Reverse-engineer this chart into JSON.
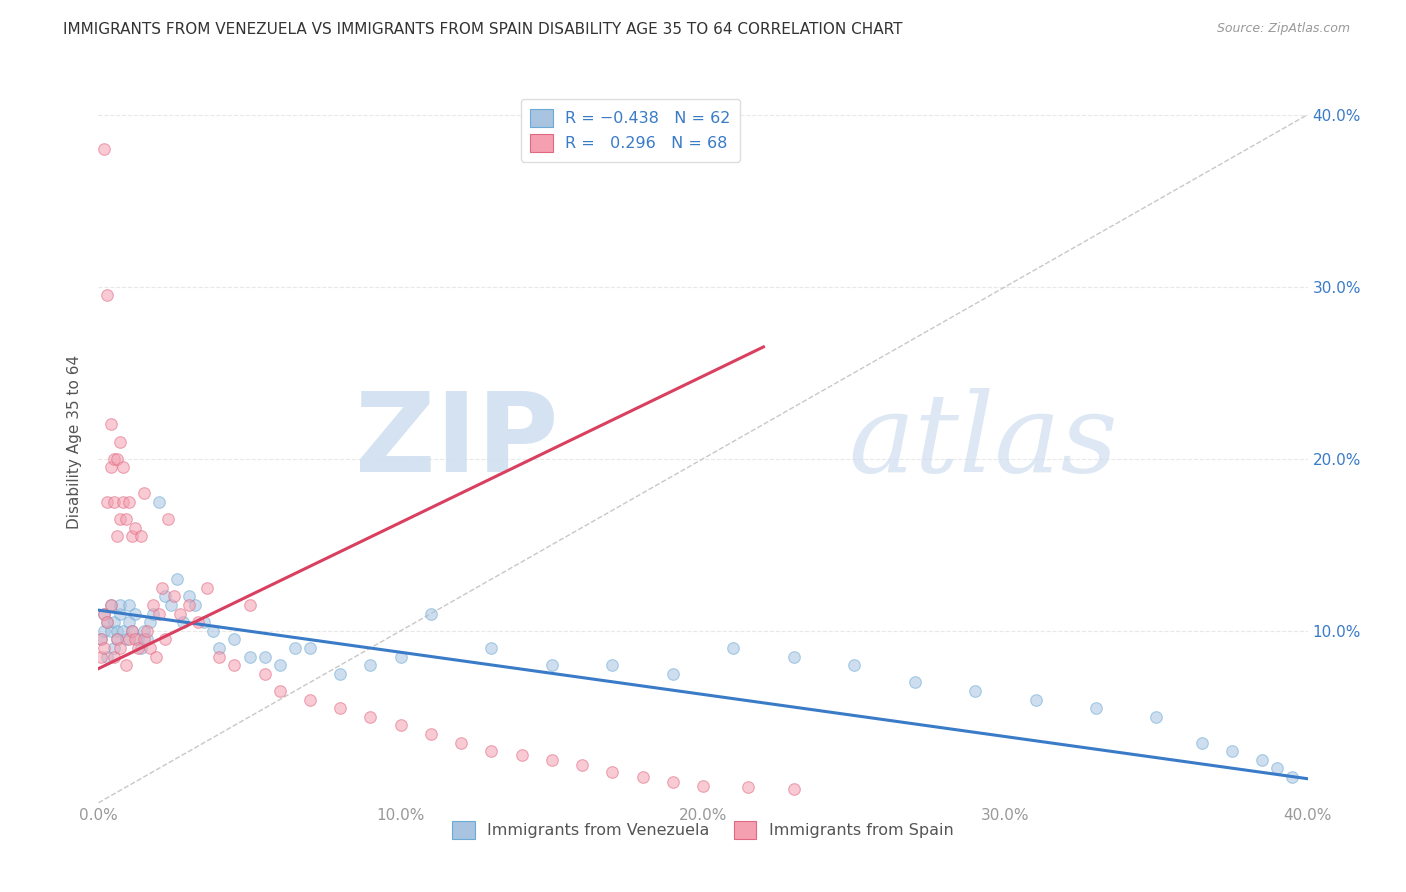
{
  "title": "IMMIGRANTS FROM VENEZUELA VS IMMIGRANTS FROM SPAIN DISABILITY AGE 35 TO 64 CORRELATION CHART",
  "source": "Source: ZipAtlas.com",
  "ylabel": "Disability Age 35 to 64",
  "xmin": 0.0,
  "xmax": 0.4,
  "ymin": 0.0,
  "ymax": 0.42,
  "x_tick_labels": [
    "0.0%",
    "10.0%",
    "20.0%",
    "30.0%",
    "40.0%"
  ],
  "x_tick_vals": [
    0.0,
    0.1,
    0.2,
    0.3,
    0.4
  ],
  "y_tick_labels": [
    "",
    "10.0%",
    "20.0%",
    "30.0%",
    "40.0%"
  ],
  "y_tick_vals": [
    0.0,
    0.1,
    0.2,
    0.3,
    0.4
  ],
  "blue_color": "#a8c4e0",
  "pink_color": "#f4a0b0",
  "blue_line_color": "#3a7bc8",
  "pink_line_color": "#d94060",
  "blue_edge_color": "#6aaad4",
  "pink_edge_color": "#e06880",
  "diag_line_color": "#c8c8c8",
  "watermark_color": "#d0dff0",
  "title_color": "#333333",
  "source_color": "#999999",
  "grid_color": "#e8e8e8",
  "background_color": "#ffffff",
  "blue_scatter_x": [
    0.001,
    0.002,
    0.002,
    0.003,
    0.003,
    0.004,
    0.004,
    0.005,
    0.005,
    0.006,
    0.006,
    0.007,
    0.007,
    0.008,
    0.009,
    0.01,
    0.01,
    0.011,
    0.012,
    0.013,
    0.014,
    0.015,
    0.016,
    0.017,
    0.018,
    0.02,
    0.022,
    0.024,
    0.026,
    0.028,
    0.03,
    0.032,
    0.035,
    0.038,
    0.04,
    0.045,
    0.05,
    0.055,
    0.06,
    0.065,
    0.07,
    0.08,
    0.09,
    0.1,
    0.11,
    0.13,
    0.15,
    0.17,
    0.19,
    0.21,
    0.23,
    0.25,
    0.27,
    0.29,
    0.31,
    0.33,
    0.35,
    0.365,
    0.375,
    0.385,
    0.39,
    0.395
  ],
  "blue_scatter_y": [
    0.095,
    0.1,
    0.11,
    0.085,
    0.105,
    0.1,
    0.115,
    0.09,
    0.105,
    0.1,
    0.095,
    0.11,
    0.115,
    0.1,
    0.095,
    0.105,
    0.115,
    0.1,
    0.11,
    0.095,
    0.09,
    0.1,
    0.095,
    0.105,
    0.11,
    0.175,
    0.12,
    0.115,
    0.13,
    0.105,
    0.12,
    0.115,
    0.105,
    0.1,
    0.09,
    0.095,
    0.085,
    0.085,
    0.08,
    0.09,
    0.09,
    0.075,
    0.08,
    0.085,
    0.11,
    0.09,
    0.08,
    0.08,
    0.075,
    0.09,
    0.085,
    0.08,
    0.07,
    0.065,
    0.06,
    0.055,
    0.05,
    0.035,
    0.03,
    0.025,
    0.02,
    0.015
  ],
  "pink_scatter_x": [
    0.001,
    0.001,
    0.002,
    0.002,
    0.002,
    0.003,
    0.003,
    0.003,
    0.004,
    0.004,
    0.004,
    0.005,
    0.005,
    0.005,
    0.006,
    0.006,
    0.006,
    0.007,
    0.007,
    0.007,
    0.008,
    0.008,
    0.009,
    0.009,
    0.01,
    0.01,
    0.011,
    0.011,
    0.012,
    0.012,
    0.013,
    0.014,
    0.015,
    0.015,
    0.016,
    0.017,
    0.018,
    0.019,
    0.02,
    0.021,
    0.022,
    0.023,
    0.025,
    0.027,
    0.03,
    0.033,
    0.036,
    0.04,
    0.045,
    0.05,
    0.055,
    0.06,
    0.07,
    0.08,
    0.09,
    0.1,
    0.11,
    0.12,
    0.13,
    0.14,
    0.15,
    0.16,
    0.17,
    0.18,
    0.19,
    0.2,
    0.215,
    0.23
  ],
  "pink_scatter_y": [
    0.085,
    0.095,
    0.09,
    0.11,
    0.38,
    0.105,
    0.175,
    0.295,
    0.115,
    0.195,
    0.22,
    0.085,
    0.175,
    0.2,
    0.095,
    0.155,
    0.2,
    0.09,
    0.165,
    0.21,
    0.175,
    0.195,
    0.08,
    0.165,
    0.095,
    0.175,
    0.1,
    0.155,
    0.095,
    0.16,
    0.09,
    0.155,
    0.095,
    0.18,
    0.1,
    0.09,
    0.115,
    0.085,
    0.11,
    0.125,
    0.095,
    0.165,
    0.12,
    0.11,
    0.115,
    0.105,
    0.125,
    0.085,
    0.08,
    0.115,
    0.075,
    0.065,
    0.06,
    0.055,
    0.05,
    0.045,
    0.04,
    0.035,
    0.03,
    0.028,
    0.025,
    0.022,
    0.018,
    0.015,
    0.012,
    0.01,
    0.009,
    0.008
  ],
  "dot_size": 70,
  "dot_alpha": 0.55,
  "line_width": 2.2,
  "blue_line_intercept": 0.112,
  "blue_line_slope": -0.245,
  "pink_line_intercept": 0.078,
  "pink_line_slope": 0.85
}
